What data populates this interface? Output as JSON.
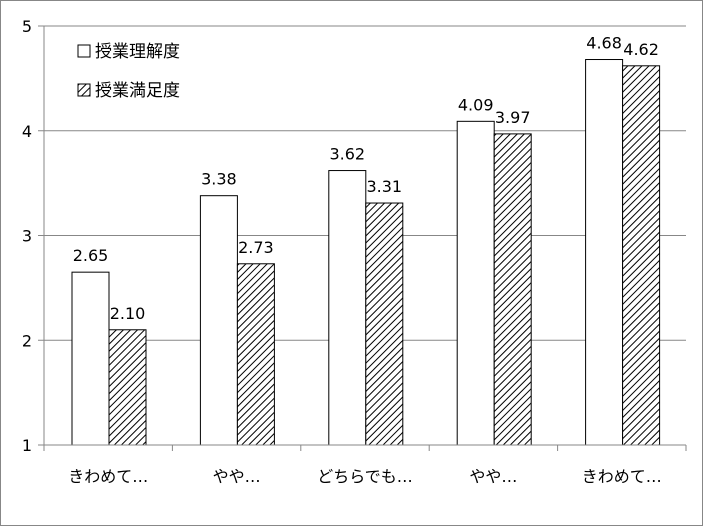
{
  "chart_data": {
    "type": "bar",
    "categories": [
      "きわめて…",
      "やや…",
      "どちらでも…",
      "やや…",
      "きわめて…"
    ],
    "series": [
      {
        "name": "授業理解度",
        "values": [
          2.65,
          3.38,
          3.62,
          4.09,
          4.68
        ],
        "labels": [
          "2.65",
          "3.38",
          "3.62",
          "4.09",
          "4.68"
        ],
        "fill": "#ffffff",
        "pattern": "none"
      },
      {
        "name": "授業満足度",
        "values": [
          2.1,
          2.73,
          3.31,
          3.97,
          4.62
        ],
        "labels": [
          "2.10",
          "2.73",
          "3.31",
          "3.97",
          "4.62"
        ],
        "fill": "#ffffff",
        "pattern": "diagonal-hatch"
      }
    ],
    "ylim": [
      1,
      5
    ],
    "yticks": [
      "1",
      "2",
      "3",
      "4",
      "5"
    ],
    "grid": true,
    "legend_position": "top-left",
    "colors": {
      "bar_stroke": "#000000",
      "grid": "#878787",
      "axis": "#878787",
      "hatch": "#000000"
    }
  }
}
